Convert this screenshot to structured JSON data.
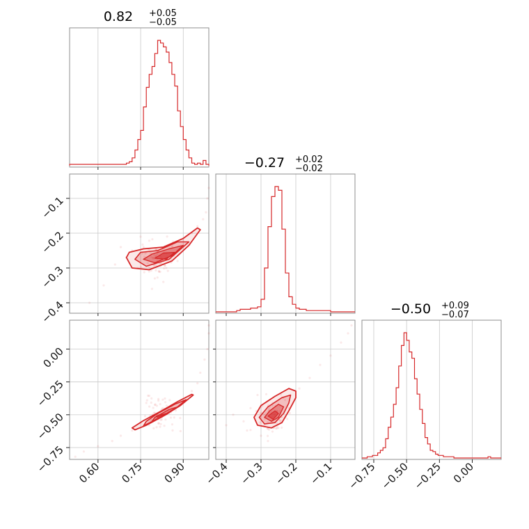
{
  "chart_data": {
    "type": "corner",
    "parameters": [
      {
        "title": {
          "median": "0.82",
          "upper": "+0.05",
          "lower": "−0.05"
        },
        "range": [
          0.5,
          0.99
        ],
        "ticks": [
          0.6,
          0.75,
          0.9
        ],
        "tick_labels": [
          "0.60",
          "0.75",
          "0.90"
        ]
      },
      {
        "title": {
          "median": "−0.27",
          "upper": "+0.02",
          "lower": "−0.02"
        },
        "range": [
          -0.43,
          -0.03
        ],
        "ticks": [
          -0.4,
          -0.3,
          -0.2,
          -0.1
        ],
        "tick_labels": [
          "−0.4",
          "−0.3",
          "−0.2",
          "−0.1"
        ]
      },
      {
        "title": {
          "median": "−0.50",
          "upper": "+0.09",
          "lower": "−0.07"
        },
        "range": [
          -0.84,
          0.22
        ],
        "ticks": [
          -0.75,
          -0.5,
          -0.25,
          0.0
        ],
        "tick_labels": [
          "−0.75",
          "−0.50",
          "−0.25",
          "0.00"
        ]
      }
    ],
    "histograms": [
      {
        "bin_start": 0.5,
        "bin_width": 0.01,
        "counts": [
          0.01,
          0.01,
          0.01,
          0.01,
          0.01,
          0.01,
          0.01,
          0.01,
          0.01,
          0.01,
          0.01,
          0.01,
          0.01,
          0.01,
          0.01,
          0.01,
          0.01,
          0.01,
          0.01,
          0.01,
          0.02,
          0.03,
          0.06,
          0.12,
          0.2,
          0.27,
          0.45,
          0.6,
          0.7,
          0.76,
          0.86,
          0.96,
          0.94,
          0.91,
          0.87,
          0.79,
          0.7,
          0.61,
          0.42,
          0.3,
          0.2,
          0.12,
          0.06,
          0.02,
          0.01,
          0.02,
          0.01,
          0.04,
          0.01
        ]
      },
      {
        "bin_start": -0.43,
        "bin_width": 0.01,
        "counts": [
          0.0,
          0.0,
          0.0,
          0.0,
          0.0,
          0.0,
          0.01,
          0.02,
          0.02,
          0.02,
          0.03,
          0.03,
          0.04,
          0.1,
          0.35,
          0.68,
          0.92,
          1.0,
          0.97,
          0.66,
          0.31,
          0.12,
          0.06,
          0.03,
          0.02,
          0.02,
          0.01,
          0.01,
          0.01,
          0.01,
          0.01,
          0.01,
          0.01,
          0.0,
          0.0,
          0.0,
          0.0,
          0.0,
          0.0,
          0.0
        ]
      },
      {
        "bin_start": -0.84,
        "bin_width": 0.02,
        "counts": [
          0.0,
          0.0,
          0.01,
          0.01,
          0.02,
          0.02,
          0.04,
          0.06,
          0.08,
          0.15,
          0.24,
          0.32,
          0.42,
          0.55,
          0.72,
          0.88,
          0.98,
          0.92,
          0.83,
          0.78,
          0.62,
          0.5,
          0.38,
          0.27,
          0.16,
          0.11,
          0.06,
          0.05,
          0.03,
          0.02,
          0.02,
          0.01,
          0.01,
          0.01,
          0.01,
          0.0,
          0.0,
          0.0,
          0.0,
          0.0,
          0.0,
          0.0,
          0.0,
          0.0,
          0.0,
          0.0,
          0.0,
          0.0,
          0.01,
          0.0,
          0.0,
          0.0,
          0.0
        ]
      }
    ],
    "scatter_2d": [
      {
        "x_param": 0,
        "y_param": 1,
        "center": [
          0.82,
          -0.27
        ],
        "points": [
          [
            0.72,
            -0.25
          ],
          [
            0.74,
            -0.3
          ],
          [
            0.76,
            -0.24
          ],
          [
            0.78,
            -0.31
          ],
          [
            0.7,
            -0.27
          ],
          [
            0.86,
            -0.24
          ],
          [
            0.9,
            -0.22
          ],
          [
            0.93,
            -0.2
          ],
          [
            0.95,
            -0.18
          ],
          [
            0.97,
            -0.16
          ],
          [
            0.98,
            -0.14
          ],
          [
            0.985,
            -0.1
          ],
          [
            0.99,
            -0.07
          ],
          [
            0.8,
            -0.33
          ],
          [
            0.79,
            -0.36
          ],
          [
            0.66,
            -0.29
          ],
          [
            0.62,
            -0.35
          ],
          [
            0.57,
            -0.4
          ],
          [
            0.84,
            -0.3
          ],
          [
            0.75,
            -0.21
          ],
          [
            0.68,
            -0.24
          ],
          [
            0.88,
            -0.28
          ],
          [
            0.83,
            -0.34
          ]
        ],
        "contours": [
          {
            "level": "outer",
            "points": [
              [
                0.7,
                -0.27
              ],
              [
                0.72,
                -0.3
              ],
              [
                0.78,
                -0.305
              ],
              [
                0.86,
                -0.28
              ],
              [
                0.92,
                -0.235
              ],
              [
                0.96,
                -0.19
              ],
              [
                0.95,
                -0.185
              ],
              [
                0.9,
                -0.215
              ],
              [
                0.83,
                -0.24
              ],
              [
                0.76,
                -0.245
              ],
              [
                0.71,
                -0.255
              ]
            ]
          },
          {
            "level": "mid",
            "points": [
              [
                0.73,
                -0.275
              ],
              [
                0.77,
                -0.295
              ],
              [
                0.85,
                -0.275
              ],
              [
                0.92,
                -0.225
              ],
              [
                0.88,
                -0.225
              ],
              [
                0.81,
                -0.25
              ],
              [
                0.75,
                -0.255
              ]
            ]
          },
          {
            "level": "inner",
            "points": [
              [
                0.76,
                -0.275
              ],
              [
                0.8,
                -0.285
              ],
              [
                0.86,
                -0.265
              ],
              [
                0.9,
                -0.235
              ],
              [
                0.85,
                -0.245
              ],
              [
                0.79,
                -0.26
              ]
            ]
          },
          {
            "level": "core",
            "points": [
              [
                0.8,
                -0.272
              ],
              [
                0.84,
                -0.275
              ],
              [
                0.87,
                -0.255
              ],
              [
                0.83,
                -0.257
              ]
            ]
          }
        ]
      },
      {
        "x_param": 0,
        "y_param": 2,
        "center": [
          0.82,
          -0.5
        ],
        "points": [
          [
            0.68,
            -0.66
          ],
          [
            0.65,
            -0.7
          ],
          [
            0.6,
            -0.74
          ],
          [
            0.55,
            -0.78
          ],
          [
            0.72,
            -0.62
          ],
          [
            0.93,
            -0.32
          ],
          [
            0.95,
            -0.26
          ],
          [
            0.96,
            -0.18
          ],
          [
            0.975,
            -0.08
          ],
          [
            0.985,
            0.0
          ],
          [
            0.99,
            0.12
          ],
          [
            0.99,
            0.18
          ],
          [
            0.78,
            -0.58
          ],
          [
            0.86,
            -0.44
          ],
          [
            0.9,
            -0.38
          ],
          [
            0.52,
            -0.82
          ]
        ],
        "contours": [
          {
            "level": "outer",
            "points": [
              [
                0.73,
                -0.615
              ],
              [
                0.77,
                -0.58
              ],
              [
                0.83,
                -0.51
              ],
              [
                0.89,
                -0.43
              ],
              [
                0.935,
                -0.35
              ],
              [
                0.93,
                -0.345
              ],
              [
                0.88,
                -0.4
              ],
              [
                0.82,
                -0.475
              ],
              [
                0.76,
                -0.545
              ],
              [
                0.72,
                -0.6
              ]
            ]
          },
          {
            "level": "mid",
            "points": [
              [
                0.76,
                -0.585
              ],
              [
                0.82,
                -0.52
              ],
              [
                0.88,
                -0.44
              ],
              [
                0.91,
                -0.385
              ],
              [
                0.87,
                -0.42
              ],
              [
                0.81,
                -0.49
              ],
              [
                0.77,
                -0.55
              ]
            ]
          },
          {
            "level": "inner",
            "points": [
              [
                0.79,
                -0.55
              ],
              [
                0.84,
                -0.5
              ],
              [
                0.88,
                -0.44
              ],
              [
                0.85,
                -0.46
              ],
              [
                0.8,
                -0.52
              ]
            ]
          },
          {
            "level": "core",
            "points": [
              [
                0.81,
                -0.52
              ],
              [
                0.84,
                -0.49
              ],
              [
                0.83,
                -0.495
              ],
              [
                0.805,
                -0.51
              ]
            ]
          }
        ]
      },
      {
        "x_param": 1,
        "y_param": 2,
        "center": [
          -0.27,
          -0.5
        ],
        "points": [
          [
            -0.33,
            -0.45
          ],
          [
            -0.35,
            -0.55
          ],
          [
            -0.34,
            -0.62
          ],
          [
            -0.3,
            -0.66
          ],
          [
            -0.25,
            -0.6
          ],
          [
            -0.22,
            -0.45
          ],
          [
            -0.19,
            -0.3
          ],
          [
            -0.16,
            -0.22
          ],
          [
            -0.13,
            -0.12
          ],
          [
            -0.1,
            -0.05
          ],
          [
            -0.07,
            0.05
          ],
          [
            -0.05,
            0.12
          ],
          [
            -0.04,
            0.18
          ],
          [
            -0.38,
            -0.5
          ],
          [
            -0.4,
            -0.58
          ],
          [
            -0.31,
            -0.35
          ],
          [
            -0.28,
            -0.7
          ],
          [
            -0.24,
            -0.52
          ]
        ],
        "contours": [
          {
            "level": "outer",
            "points": [
              [
                -0.32,
                -0.52
              ],
              [
                -0.31,
                -0.58
              ],
              [
                -0.27,
                -0.6
              ],
              [
                -0.24,
                -0.56
              ],
              [
                -0.22,
                -0.47
              ],
              [
                -0.2,
                -0.37
              ],
              [
                -0.2,
                -0.32
              ],
              [
                -0.22,
                -0.3
              ],
              [
                -0.26,
                -0.36
              ],
              [
                -0.3,
                -0.43
              ]
            ]
          },
          {
            "level": "mid",
            "points": [
              [
                -0.305,
                -0.52
              ],
              [
                -0.29,
                -0.57
              ],
              [
                -0.26,
                -0.56
              ],
              [
                -0.235,
                -0.49
              ],
              [
                -0.22,
                -0.41
              ],
              [
                -0.215,
                -0.35
              ],
              [
                -0.24,
                -0.37
              ],
              [
                -0.28,
                -0.44
              ]
            ]
          },
          {
            "level": "inner",
            "points": [
              [
                -0.29,
                -0.52
              ],
              [
                -0.27,
                -0.55
              ],
              [
                -0.25,
                -0.52
              ],
              [
                -0.235,
                -0.44
              ],
              [
                -0.25,
                -0.42
              ],
              [
                -0.275,
                -0.47
              ]
            ]
          },
          {
            "level": "core",
            "points": [
              [
                -0.28,
                -0.51
              ],
              [
                -0.265,
                -0.535
              ],
              [
                -0.25,
                -0.49
              ],
              [
                -0.26,
                -0.47
              ]
            ]
          }
        ]
      }
    ],
    "grid": true,
    "color": "#d62728"
  }
}
